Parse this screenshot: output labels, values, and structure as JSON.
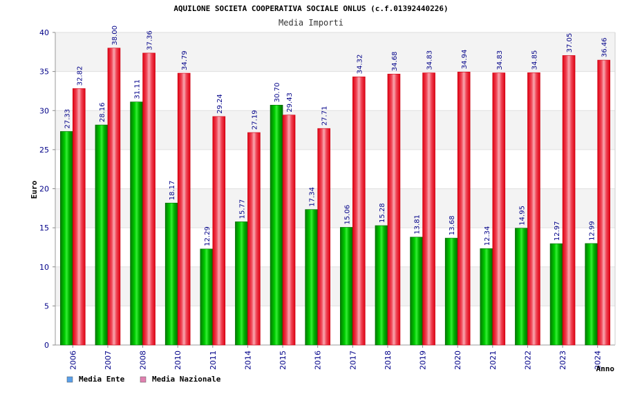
{
  "chart_data": {
    "type": "bar",
    "title": "AQUILONE SOCIETA COOPERATIVA SOCIALE ONLUS (c.f.01392440226)",
    "subtitle": "Media Importi",
    "xlabel": "Anno",
    "ylabel": "Euro",
    "ylim": [
      0,
      40
    ],
    "yticks": [
      "0",
      "5",
      "10",
      "15",
      "20",
      "25",
      "30",
      "35",
      "40"
    ],
    "grid": true,
    "legend_position": "bottom-left",
    "categories": [
      "2006",
      "2007",
      "2008",
      "2010",
      "2011",
      "2014",
      "2015",
      "2016",
      "2017",
      "2018",
      "2019",
      "2020",
      "2021",
      "2022",
      "2023",
      "2024"
    ],
    "series": [
      {
        "name": "Media Ente",
        "color": "#00bb00",
        "legend_color": "#5aa0ea",
        "values": [
          27.33,
          28.16,
          31.11,
          18.17,
          12.29,
          15.77,
          30.7,
          17.34,
          15.06,
          15.28,
          13.81,
          13.68,
          12.34,
          14.95,
          12.97,
          12.99
        ],
        "labels": [
          "27.33",
          "28.16",
          "31.11",
          "18.17",
          "12.29",
          "15.77",
          "30.70",
          "17.34",
          "15.06",
          "15.28",
          "13.81",
          "13.68",
          "12.34",
          "14.95",
          "12.97",
          "12.99"
        ]
      },
      {
        "name": "Media Nazionale",
        "color": "#ee1122",
        "legend_color": "#e080b0",
        "values": [
          32.82,
          38.0,
          37.36,
          34.79,
          29.24,
          27.19,
          29.43,
          27.71,
          34.32,
          34.68,
          34.83,
          34.94,
          34.83,
          34.85,
          37.05,
          36.46
        ],
        "labels": [
          "32.82",
          "38.00",
          "37.36",
          "34.79",
          "29.24",
          "27.19",
          "29.43",
          "27.71",
          "34.32",
          "34.68",
          "34.83",
          "34.94",
          "34.83",
          "34.85",
          "37.05",
          "36.46"
        ]
      }
    ]
  }
}
